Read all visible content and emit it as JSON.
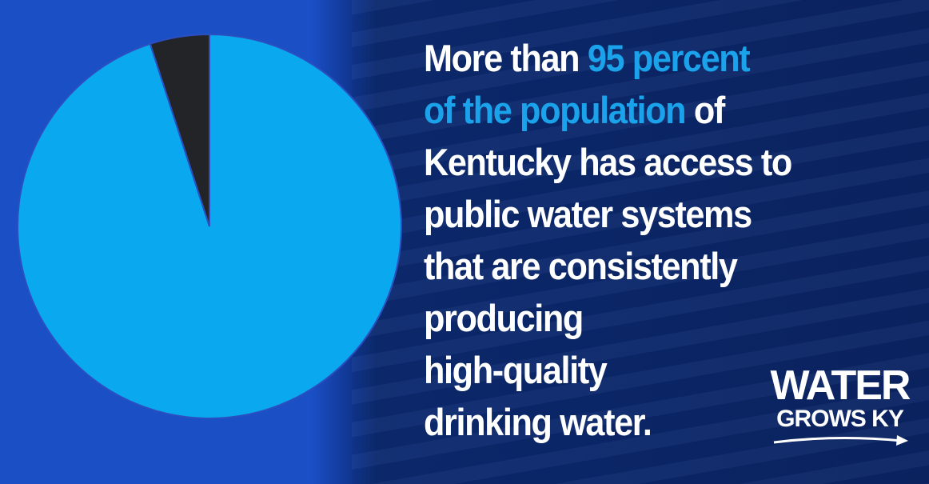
{
  "chart_data": {
    "type": "pie",
    "values": [
      95,
      5
    ],
    "colors": [
      "#0aa8ee",
      "#222428"
    ],
    "start": "top",
    "direction": "clockwise"
  },
  "headline": {
    "lines": [
      [
        {
          "text": "More than ",
          "highlight": false
        },
        {
          "text": "95 percent",
          "highlight": true
        }
      ],
      [
        {
          "text": "of the population",
          "highlight": true
        },
        {
          "text": " of",
          "highlight": false
        }
      ],
      [
        {
          "text": "Kentucky has access to",
          "highlight": false
        }
      ],
      [
        {
          "text": "public water systems",
          "highlight": false
        }
      ],
      [
        {
          "text": "that are consistently",
          "highlight": false
        }
      ],
      [
        {
          "text": "producing",
          "highlight": false
        }
      ],
      [
        {
          "text": "high-quality",
          "highlight": false
        }
      ],
      [
        {
          "text": "drinking water.",
          "highlight": false
        }
      ]
    ],
    "highlight_color": "#1aa3ea"
  },
  "logo": {
    "line1": "WATER",
    "line2": "GROWS KY"
  }
}
